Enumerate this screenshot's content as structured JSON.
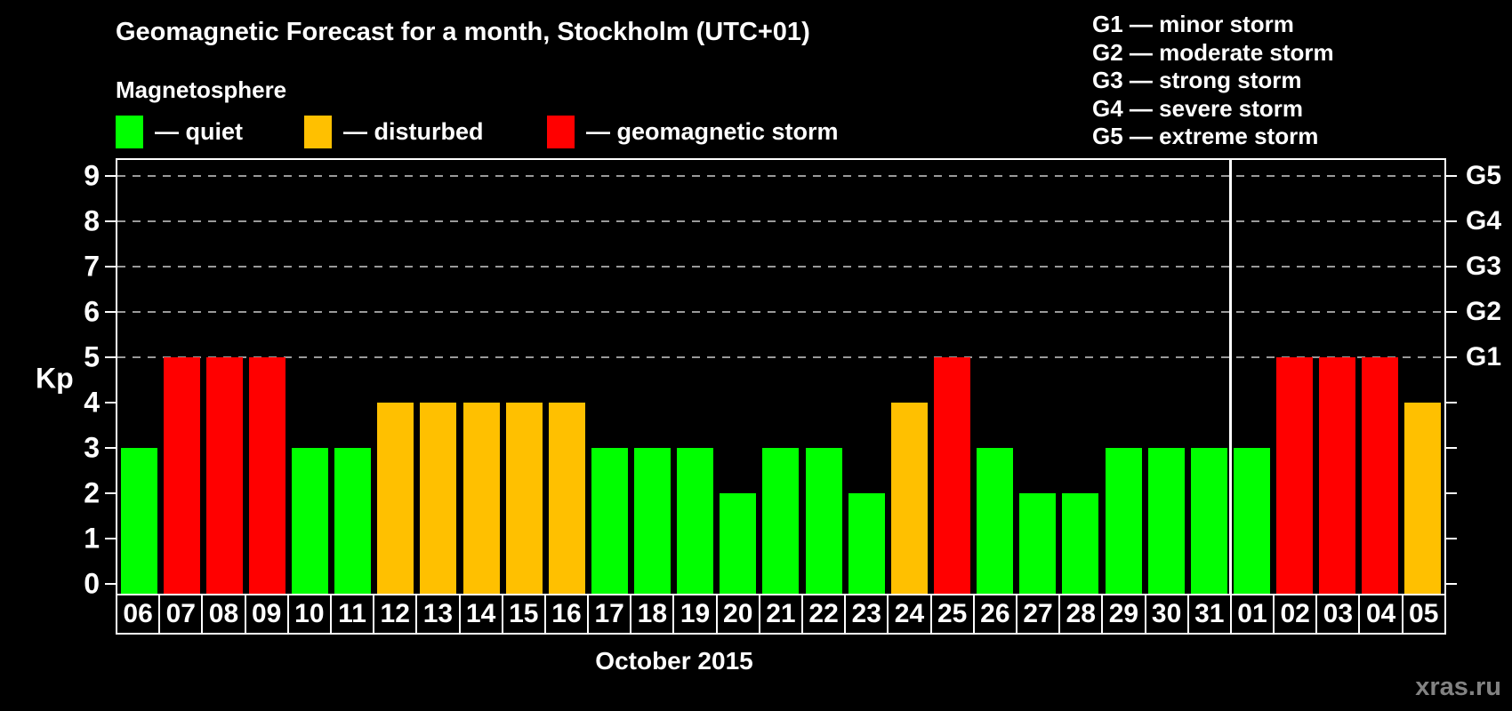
{
  "header": {
    "title": "Geomagnetic Forecast for a month, Stockholm (UTC+01)",
    "subtitle": "Magnetosphere"
  },
  "legend": {
    "items": [
      {
        "name": "quiet",
        "swatch_color": "#00ff00",
        "label": "— quiet"
      },
      {
        "name": "disturbed",
        "swatch_color": "#ffc000",
        "label": "— disturbed"
      },
      {
        "name": "storm",
        "swatch_color": "#ff0000",
        "label": "— geomagnetic storm"
      }
    ]
  },
  "g_scale_legend": {
    "items": [
      "G1 — minor storm",
      "G2 — moderate storm",
      "G3 — strong storm",
      "G4 — severe storm",
      "G5 — extreme storm"
    ]
  },
  "colors": {
    "quiet": "#00ff00",
    "disturbed": "#ffc000",
    "storm": "#ff0000",
    "background": "#000000",
    "text": "#ffffff",
    "grid": "#9a9a9a",
    "watermark": "#828282"
  },
  "chart_data": {
    "type": "bar",
    "title": "Geomagnetic Forecast for a month, Stockholm (UTC+01)",
    "xlabel": "October 2015",
    "ylabel": "Kp",
    "ylim": [
      0,
      9
    ],
    "yticks": [
      0,
      1,
      2,
      3,
      4,
      5,
      6,
      7,
      8,
      9
    ],
    "grid": "dashed horizontal gridlines at Kp 5 through 9",
    "legend_position": "top-left",
    "categories": [
      "06",
      "07",
      "08",
      "09",
      "10",
      "11",
      "12",
      "13",
      "14",
      "15",
      "16",
      "17",
      "18",
      "19",
      "20",
      "21",
      "22",
      "23",
      "24",
      "25",
      "26",
      "27",
      "28",
      "29",
      "30",
      "31",
      "01",
      "02",
      "03",
      "04",
      "05"
    ],
    "values": [
      3,
      5,
      5,
      5,
      3,
      3,
      4,
      4,
      4,
      4,
      4,
      3,
      3,
      3,
      2,
      3,
      3,
      2,
      4,
      5,
      3,
      2,
      2,
      3,
      3,
      3,
      3,
      5,
      5,
      5,
      4
    ],
    "statuses": [
      "quiet",
      "storm",
      "storm",
      "storm",
      "quiet",
      "quiet",
      "disturbed",
      "disturbed",
      "disturbed",
      "disturbed",
      "disturbed",
      "quiet",
      "quiet",
      "quiet",
      "quiet",
      "quiet",
      "quiet",
      "quiet",
      "disturbed",
      "storm",
      "quiet",
      "quiet",
      "quiet",
      "quiet",
      "quiet",
      "quiet",
      "quiet",
      "storm",
      "storm",
      "storm",
      "disturbed"
    ],
    "month_separator_after_index": 25,
    "right_axis": [
      {
        "label": "G1",
        "kp": 5
      },
      {
        "label": "G2",
        "kp": 6
      },
      {
        "label": "G3",
        "kp": 7
      },
      {
        "label": "G4",
        "kp": 8
      },
      {
        "label": "G5",
        "kp": 9
      }
    ]
  },
  "footer": {
    "watermark": "xras.ru"
  }
}
